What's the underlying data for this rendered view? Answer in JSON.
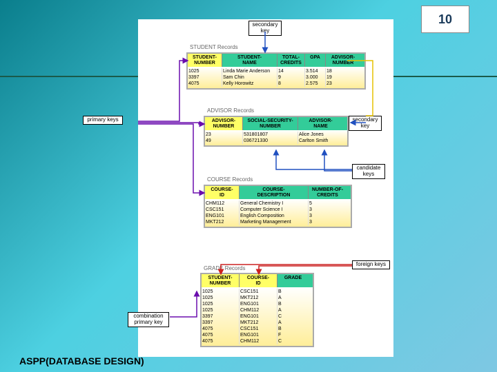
{
  "slide_number": "10",
  "footer": "ASPP(DATABASE DESIGN)",
  "labels": {
    "secondary_key_top": "secondary\nkey",
    "primary_keys": "primary keys",
    "secondary_key_mid": "secondary\nkey",
    "candidate_keys": "candidate\nkeys",
    "foreign_keys": "foreign keys",
    "combination_pk": "combination\nprimary key"
  },
  "student": {
    "title": "STUDENT Records",
    "cols": [
      "STUDENT-\nNUMBER",
      "STUDENT-\nNAME",
      "TOTAL-\nCREDITS",
      "GPA",
      "ADVISOR-\nNUMBER"
    ],
    "widths": [
      50,
      80,
      40,
      30,
      50
    ],
    "rows": [
      [
        "1025",
        "Linda Marie Anderson",
        "14",
        "3.514",
        "18"
      ],
      [
        "3397",
        "Sam Chin",
        "9",
        "3.000",
        "19"
      ],
      [
        "4075",
        "Kelly Horowitz",
        "8",
        "2.575",
        "23"
      ]
    ]
  },
  "advisor": {
    "title": "ADVISOR Records",
    "cols": [
      "ADVISOR-\nNUMBER",
      "SOCIAL-SECURITY-\nNUMBER",
      "ADVISOR-\nNAME"
    ],
    "widths": [
      55,
      80,
      65
    ],
    "rows": [
      [
        "23",
        "531801807",
        "Alice Jones"
      ],
      [
        "49",
        "036721330",
        "Carlton Smith"
      ]
    ]
  },
  "course": {
    "title": "COURSE Records",
    "cols": [
      "COURSE-\nID",
      "COURSE-\nDESCRIPTION",
      "NUMBER-OF-\nCREDITS"
    ],
    "widths": [
      50,
      100,
      55
    ],
    "rows": [
      [
        "CHM112",
        "General Chemistry I",
        "5"
      ],
      [
        "CSC151",
        "Computer Science I",
        "3"
      ],
      [
        "ENG101",
        "English Composition",
        "3"
      ],
      [
        "MKT212",
        "Marketing Management",
        "3"
      ]
    ]
  },
  "grade": {
    "title": "GRADE Records",
    "cols": [
      "STUDENT-\nNUMBER",
      "COURSE-\nID",
      "GRADE"
    ],
    "widths": [
      55,
      55,
      45
    ],
    "rows": [
      [
        "1025",
        "CSC151",
        "B"
      ],
      [
        "1025",
        "MKT212",
        "A"
      ],
      [
        "1025",
        "ENG101",
        "B"
      ],
      [
        "1025",
        "CHM112",
        "A"
      ],
      [
        "3397",
        "ENG101",
        "C"
      ],
      [
        "3397",
        "MKT212",
        "A"
      ],
      [
        "4075",
        "CSC151",
        "B"
      ],
      [
        "4075",
        "ENG101",
        "F"
      ],
      [
        "4075",
        "CHM112",
        "C"
      ]
    ]
  },
  "colors": {
    "header_bg": "#33cc99",
    "highlight_bg": "#ffff66",
    "arrow_blue": "#2050c0",
    "arrow_yellow": "#e6c200",
    "arrow_purple": "#6a0dad",
    "arrow_red": "#cc2020"
  }
}
